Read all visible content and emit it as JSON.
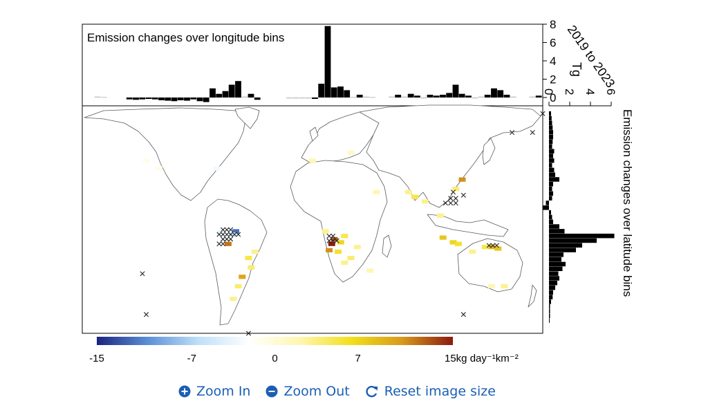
{
  "chart_data": {
    "type": "heatmap",
    "title": "",
    "period_label": "2019 to 2023",
    "unit_label": "Tg",
    "colorscale": {
      "min": -15,
      "max": 15,
      "stops": [
        "#1a237e",
        "#5c8fd6",
        "#bfe0f8",
        "#ffffff",
        "#fff6b0",
        "#f2df1c",
        "#d79a1c",
        "#8b1a10"
      ],
      "tick_values": [
        -15,
        -7,
        0,
        7,
        15
      ],
      "tick_labels": [
        "-15",
        "-7",
        "0",
        "7",
        "15kg day⁻¹km⁻²"
      ]
    },
    "longitude_panel": {
      "title": "Emission changes over longitude bins",
      "ylim": [
        0,
        8
      ],
      "yticks": [
        0,
        2,
        4,
        6,
        8
      ],
      "bins": [
        {
          "lon": -168,
          "value": 0.1
        },
        {
          "lon": -163,
          "value": 0.05
        },
        {
          "lon": -143,
          "value": -0.2
        },
        {
          "lon": -138,
          "value": -0.25
        },
        {
          "lon": -133,
          "value": -0.2
        },
        {
          "lon": -128,
          "value": -0.15
        },
        {
          "lon": -123,
          "value": -0.2
        },
        {
          "lon": -118,
          "value": -0.3
        },
        {
          "lon": -113,
          "value": -0.35
        },
        {
          "lon": -108,
          "value": -0.4
        },
        {
          "lon": -103,
          "value": -0.3
        },
        {
          "lon": -98,
          "value": -0.35
        },
        {
          "lon": -93,
          "value": -0.2
        },
        {
          "lon": -88,
          "value": -0.4
        },
        {
          "lon": -83,
          "value": -0.5
        },
        {
          "lon": -78,
          "value": 1.0
        },
        {
          "lon": -73,
          "value": 0.4
        },
        {
          "lon": -68,
          "value": 0.7
        },
        {
          "lon": -63,
          "value": 1.4
        },
        {
          "lon": -58,
          "value": 1.8
        },
        {
          "lon": -53,
          "value": 0.1
        },
        {
          "lon": -48,
          "value": 0.4
        },
        {
          "lon": -43,
          "value": -0.25
        },
        {
          "lon": -18,
          "value": -0.1
        },
        {
          "lon": -13,
          "value": -0.1
        },
        {
          "lon": -8,
          "value": -0.1
        },
        {
          "lon": -3,
          "value": -0.1
        },
        {
          "lon": 2,
          "value": -0.15
        },
        {
          "lon": 7,
          "value": 1.5
        },
        {
          "lon": 12,
          "value": 7.8
        },
        {
          "lon": 17,
          "value": 1.1
        },
        {
          "lon": 22,
          "value": 1.2
        },
        {
          "lon": 27,
          "value": 0.8
        },
        {
          "lon": 32,
          "value": 0.05
        },
        {
          "lon": 37,
          "value": 0.3
        },
        {
          "lon": 42,
          "value": 0.1
        },
        {
          "lon": 47,
          "value": 0.05
        },
        {
          "lon": 62,
          "value": 0.1
        },
        {
          "lon": 67,
          "value": 0.3
        },
        {
          "lon": 72,
          "value": 0.1
        },
        {
          "lon": 77,
          "value": 0.4
        },
        {
          "lon": 82,
          "value": 0.2
        },
        {
          "lon": 87,
          "value": -0.1
        },
        {
          "lon": 92,
          "value": 0.3
        },
        {
          "lon": 97,
          "value": 0.2
        },
        {
          "lon": 102,
          "value": 0.3
        },
        {
          "lon": 107,
          "value": 0.5
        },
        {
          "lon": 112,
          "value": 1.4
        },
        {
          "lon": 117,
          "value": 0.4
        },
        {
          "lon": 122,
          "value": 0.2
        },
        {
          "lon": 127,
          "value": -0.1
        },
        {
          "lon": 132,
          "value": 0.1
        },
        {
          "lon": 137,
          "value": 0.3
        },
        {
          "lon": 142,
          "value": 1.0
        },
        {
          "lon": 147,
          "value": 0.8
        },
        {
          "lon": 152,
          "value": 0.3
        },
        {
          "lon": 157,
          "value": 0.1
        },
        {
          "lon": 172,
          "value": 0.1
        },
        {
          "lon": 177,
          "value": 0.2
        }
      ]
    },
    "latitude_panel": {
      "title": "Emission changes over latitude bins",
      "xlim": [
        0,
        6
      ],
      "xticks": [
        0,
        2,
        4,
        6
      ],
      "bins": [
        {
          "lat": 80,
          "value": 0.2
        },
        {
          "lat": 77,
          "value": 0.25
        },
        {
          "lat": 74,
          "value": 0.3
        },
        {
          "lat": 71,
          "value": 0.35
        },
        {
          "lat": 68,
          "value": 0.4
        },
        {
          "lat": 65,
          "value": 0.4
        },
        {
          "lat": 62,
          "value": 0.35
        },
        {
          "lat": 59,
          "value": 0.3
        },
        {
          "lat": 56,
          "value": 0.5
        },
        {
          "lat": 53,
          "value": 0.4
        },
        {
          "lat": 50,
          "value": 0.5
        },
        {
          "lat": 47,
          "value": 0.3
        },
        {
          "lat": 44,
          "value": 0.5
        },
        {
          "lat": 41,
          "value": 0.6
        },
        {
          "lat": 38,
          "value": 1.0
        },
        {
          "lat": 35,
          "value": 0.4
        },
        {
          "lat": 32,
          "value": 0.3
        },
        {
          "lat": 29,
          "value": 0.4
        },
        {
          "lat": 26,
          "value": 0.3
        },
        {
          "lat": 23,
          "value": -0.3
        },
        {
          "lat": 20,
          "value": -0.6
        },
        {
          "lat": 17,
          "value": 0.2
        },
        {
          "lat": 14,
          "value": 0.3
        },
        {
          "lat": 11,
          "value": 0.4
        },
        {
          "lat": 8,
          "value": 1.0
        },
        {
          "lat": 5,
          "value": 1.5
        },
        {
          "lat": 2,
          "value": 6.3
        },
        {
          "lat": -1,
          "value": 4.6
        },
        {
          "lat": -4,
          "value": 3.2
        },
        {
          "lat": -7,
          "value": 2.6
        },
        {
          "lat": -10,
          "value": 1.4
        },
        {
          "lat": -13,
          "value": 1.2
        },
        {
          "lat": -16,
          "value": 1.6
        },
        {
          "lat": -19,
          "value": 1.3
        },
        {
          "lat": -22,
          "value": 0.9
        },
        {
          "lat": -25,
          "value": 1.0
        },
        {
          "lat": -28,
          "value": 0.8
        },
        {
          "lat": -31,
          "value": 0.6
        },
        {
          "lat": -34,
          "value": 0.4
        },
        {
          "lat": -37,
          "value": 0.35
        },
        {
          "lat": -40,
          "value": 0.2
        },
        {
          "lat": -43,
          "value": 0.1
        },
        {
          "lat": -46,
          "value": 0.1
        },
        {
          "lat": -49,
          "value": 0.1
        },
        {
          "lat": -52,
          "value": 0.05
        }
      ]
    },
    "map": {
      "xlim": [
        -180,
        180
      ],
      "ylim": [
        -60,
        85
      ],
      "cells": [
        {
          "lon": -66,
          "lat": -3,
          "value": 12
        },
        {
          "lon": -55,
          "lat": -24,
          "value": 10
        },
        {
          "lon": -60,
          "lat": 5,
          "value": -12
        },
        {
          "lon": -63,
          "lat": 3,
          "value": -6
        },
        {
          "lon": -72,
          "lat": 4,
          "value": -4
        },
        {
          "lon": -70,
          "lat": 0,
          "value": -3
        },
        {
          "lon": -50,
          "lat": -12,
          "value": 5
        },
        {
          "lon": -48,
          "lat": -18,
          "value": 4
        },
        {
          "lon": -58,
          "lat": -30,
          "value": 4
        },
        {
          "lon": -62,
          "lat": -38,
          "value": 3
        },
        {
          "lon": -45,
          "lat": -8,
          "value": 3
        },
        {
          "lon": -110,
          "lat": 60,
          "value": -2
        },
        {
          "lon": -100,
          "lat": 55,
          "value": -2
        },
        {
          "lon": -85,
          "lat": 45,
          "value": -2
        },
        {
          "lon": -120,
          "lat": 45,
          "value": -1
        },
        {
          "lon": -95,
          "lat": 40,
          "value": -2
        },
        {
          "lon": -130,
          "lat": 50,
          "value": -1
        },
        {
          "lon": -75,
          "lat": 45,
          "value": -3
        },
        {
          "lon": 15,
          "lat": -3,
          "value": 15
        },
        {
          "lon": 17,
          "lat": 0,
          "value": 13
        },
        {
          "lon": 13,
          "lat": -7,
          "value": 11
        },
        {
          "lon": 20,
          "lat": -8,
          "value": 6
        },
        {
          "lon": 25,
          "lat": 2,
          "value": 5
        },
        {
          "lon": 22,
          "lat": -2,
          "value": 7
        },
        {
          "lon": 30,
          "lat": -12,
          "value": 4
        },
        {
          "lon": 25,
          "lat": -15,
          "value": 3
        },
        {
          "lon": 10,
          "lat": 5,
          "value": 3
        },
        {
          "lon": 35,
          "lat": -5,
          "value": 3
        },
        {
          "lon": 45,
          "lat": -20,
          "value": 2
        },
        {
          "lon": 117,
          "lat": 38,
          "value": 11
        },
        {
          "lon": 112,
          "lat": 32,
          "value": 4
        },
        {
          "lon": 80,
          "lat": 27,
          "value": 5
        },
        {
          "lon": 75,
          "lat": 30,
          "value": 3
        },
        {
          "lon": 88,
          "lat": 24,
          "value": 3
        },
        {
          "lon": 102,
          "lat": 1,
          "value": 8
        },
        {
          "lon": 110,
          "lat": -2,
          "value": 7
        },
        {
          "lon": 114,
          "lat": -3,
          "value": 6
        },
        {
          "lon": 140,
          "lat": -5,
          "value": 9
        },
        {
          "lon": 145,
          "lat": -6,
          "value": 8
        },
        {
          "lon": 135,
          "lat": -5,
          "value": 5
        },
        {
          "lon": 100,
          "lat": 15,
          "value": 3
        },
        {
          "lon": 125,
          "lat": -8,
          "value": 3
        },
        {
          "lon": 50,
          "lat": 30,
          "value": 2
        },
        {
          "lon": 140,
          "lat": -30,
          "value": 2
        },
        {
          "lon": 150,
          "lat": -30,
          "value": 3
        },
        {
          "lon": 0,
          "lat": 50,
          "value": 2
        },
        {
          "lon": 30,
          "lat": 55,
          "value": 1
        }
      ],
      "markers": [
        {
          "lon": -70,
          "lat": 6
        },
        {
          "lon": -67,
          "lat": 6
        },
        {
          "lon": -64,
          "lat": 6
        },
        {
          "lon": -73,
          "lat": 3
        },
        {
          "lon": -70,
          "lat": 3
        },
        {
          "lon": -67,
          "lat": 3
        },
        {
          "lon": -64,
          "lat": 3
        },
        {
          "lon": -61,
          "lat": 3
        },
        {
          "lon": -58,
          "lat": 3
        },
        {
          "lon": -70,
          "lat": 0
        },
        {
          "lon": -67,
          "lat": 0
        },
        {
          "lon": -64,
          "lat": 0
        },
        {
          "lon": -73,
          "lat": -3
        },
        {
          "lon": -70,
          "lat": -3
        },
        {
          "lon": -133,
          "lat": -22
        },
        {
          "lon": -130,
          "lat": -48
        },
        {
          "lon": -50,
          "lat": -60
        },
        {
          "lon": 13,
          "lat": -1
        },
        {
          "lon": 16,
          "lat": -1
        },
        {
          "lon": 13,
          "lat": 2
        },
        {
          "lon": 16,
          "lat": 2
        },
        {
          "lon": 19,
          "lat": -1
        },
        {
          "lon": 138,
          "lat": -4
        },
        {
          "lon": 141,
          "lat": -4
        },
        {
          "lon": 144,
          "lat": -4
        },
        {
          "lon": 108,
          "lat": 26
        },
        {
          "lon": 112,
          "lat": 26
        },
        {
          "lon": 112,
          "lat": 23
        },
        {
          "lon": 108,
          "lat": 23
        },
        {
          "lon": 104,
          "lat": 23
        },
        {
          "lon": 110,
          "lat": 30
        },
        {
          "lon": 118,
          "lat": 28
        },
        {
          "lon": 156,
          "lat": 68
        },
        {
          "lon": 172,
          "lat": 68
        },
        {
          "lon": 180,
          "lat": 80
        },
        {
          "lon": 118,
          "lat": -48
        }
      ]
    }
  },
  "toolbar": {
    "zoom_in": "Zoom In",
    "zoom_out": "Zoom Out",
    "reset": "Reset image size"
  },
  "colors": {
    "link": "#1a5fb4",
    "land": "#ffffff",
    "coast": "#5a5a5a",
    "bars": "#000000"
  }
}
